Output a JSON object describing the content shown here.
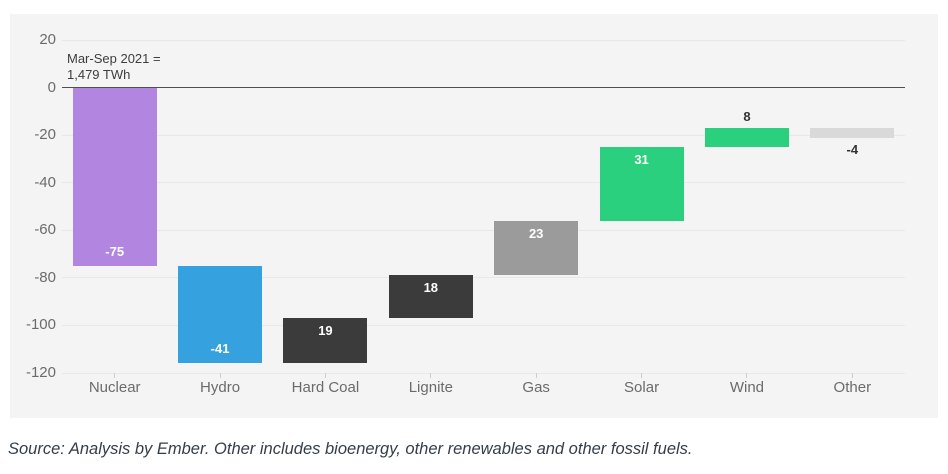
{
  "chart_data": {
    "type": "waterfall",
    "categories": [
      "Nuclear",
      "Hydro",
      "Hard Coal",
      "Lignite",
      "Gas",
      "Solar",
      "Wind",
      "Other"
    ],
    "values": [
      -75,
      -41,
      19,
      18,
      23,
      31,
      8,
      -4
    ],
    "value_labels": [
      "-75",
      "-41",
      "19",
      "18",
      "23",
      "31",
      "8",
      "-4"
    ],
    "bar_colors": [
      "#b286e0",
      "#35a1de",
      "#3b3b3b",
      "#3b3b3b",
      "#9b9b9b",
      "#2bd07f",
      "#2bd07f",
      "#d9d9d9"
    ],
    "label_positions": [
      "inside-bottom",
      "inside-bottom",
      "inside-top",
      "inside-top",
      "inside-top",
      "inside-top",
      "above",
      "below"
    ],
    "label_colors": [
      "#ffffff",
      "#ffffff",
      "#ffffff",
      "#ffffff",
      "#ffffff",
      "#ffffff",
      "#333333",
      "#333333"
    ],
    "y_ticks": [
      20,
      0,
      -20,
      -40,
      -60,
      -80,
      -100,
      -120
    ],
    "ylim": [
      -120,
      20
    ],
    "grid": "horizontal",
    "legend": "none",
    "annotation": {
      "line1": "Mar-Sep 2021 =",
      "line2": "1,479 TWh"
    }
  },
  "footer": {
    "source_text": "Source: Analysis by Ember. Other includes bioenergy, other renewables and other fossil fuels."
  },
  "colors": {
    "panel_background": "#f4f4f4",
    "page_background": "#ffffff",
    "gridline": "#e8e8e8",
    "zero_line": "#4f4f4f",
    "axis_text": "#6b6b6b",
    "annotation_text": "#3d3d3d",
    "source_text": "#333e48"
  }
}
